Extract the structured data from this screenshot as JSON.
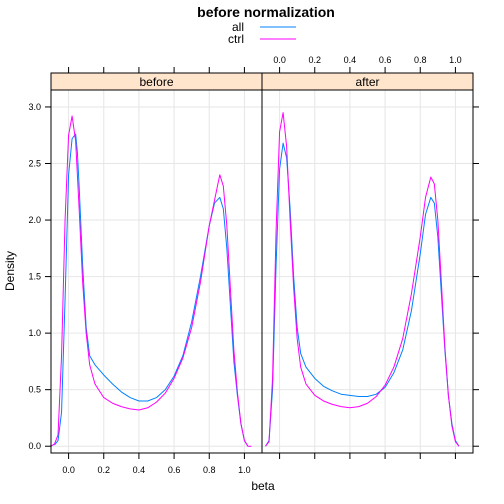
{
  "chart_data": {
    "type": "line",
    "title": "before normalization",
    "xlabel": "beta",
    "ylabel": "Density",
    "xlim": [
      -0.1,
      1.1
    ],
    "ylim": [
      -0.06,
      3.15
    ],
    "xticks": [
      0.0,
      0.2,
      0.4,
      0.6,
      0.8,
      1.0
    ],
    "xtick_labels": [
      "0.0",
      "0.2",
      "0.4",
      "0.6",
      "0.8",
      "1.0"
    ],
    "yticks": [
      0.0,
      0.5,
      1.0,
      1.5,
      2.0,
      2.5,
      3.0
    ],
    "ytick_labels": [
      "0.0",
      "0.5",
      "1.0",
      "1.5",
      "2.0",
      "2.5",
      "3.0"
    ],
    "grid": true,
    "legend": {
      "position": "top",
      "entries": [
        {
          "name": "all",
          "color": "#0080ff"
        },
        {
          "name": "ctrl",
          "color": "#ff00ff"
        }
      ]
    },
    "strip_color": "#ffe5cc",
    "panels": [
      {
        "label": "before",
        "series": [
          {
            "name": "all",
            "color": "#0080ff",
            "x": [
              -0.08,
              -0.06,
              -0.04,
              -0.02,
              0.0,
              0.02,
              0.04,
              0.05,
              0.06,
              0.08,
              0.1,
              0.12,
              0.15,
              0.2,
              0.25,
              0.3,
              0.35,
              0.4,
              0.45,
              0.5,
              0.55,
              0.6,
              0.65,
              0.7,
              0.75,
              0.8,
              0.83,
              0.86,
              0.88,
              0.9,
              0.92,
              0.94,
              0.96,
              0.98,
              1.0,
              1.02
            ],
            "y": [
              0.01,
              0.05,
              0.3,
              1.3,
              2.4,
              2.72,
              2.76,
              2.6,
              2.3,
              1.6,
              1.05,
              0.8,
              0.72,
              0.63,
              0.55,
              0.48,
              0.43,
              0.4,
              0.4,
              0.43,
              0.5,
              0.62,
              0.8,
              1.1,
              1.5,
              1.95,
              2.15,
              2.2,
              2.1,
              1.75,
              1.25,
              0.75,
              0.45,
              0.2,
              0.05,
              0.0
            ]
          },
          {
            "name": "ctrl",
            "color": "#ff00ff",
            "x": [
              -0.1,
              -0.08,
              -0.06,
              -0.04,
              -0.02,
              0.0,
              0.02,
              0.04,
              0.06,
              0.08,
              0.1,
              0.12,
              0.15,
              0.2,
              0.25,
              0.3,
              0.35,
              0.4,
              0.45,
              0.5,
              0.55,
              0.6,
              0.65,
              0.7,
              0.75,
              0.8,
              0.84,
              0.86,
              0.88,
              0.9,
              0.92,
              0.94,
              0.96,
              0.98,
              1.0,
              1.02,
              1.04
            ],
            "y": [
              0.0,
              0.02,
              0.1,
              0.8,
              2.0,
              2.75,
              2.92,
              2.7,
              2.1,
              1.45,
              1.0,
              0.72,
              0.55,
              0.43,
              0.38,
              0.35,
              0.33,
              0.32,
              0.34,
              0.39,
              0.47,
              0.6,
              0.78,
              1.05,
              1.45,
              1.95,
              2.25,
              2.4,
              2.3,
              1.95,
              1.4,
              0.85,
              0.48,
              0.2,
              0.05,
              0.0,
              0.0
            ]
          }
        ]
      },
      {
        "label": "after",
        "series": [
          {
            "name": "all",
            "color": "#0080ff",
            "x": [
              -0.08,
              -0.06,
              -0.04,
              -0.02,
              0.0,
              0.02,
              0.04,
              0.06,
              0.08,
              0.1,
              0.12,
              0.15,
              0.2,
              0.25,
              0.3,
              0.35,
              0.4,
              0.45,
              0.5,
              0.55,
              0.6,
              0.65,
              0.7,
              0.75,
              0.8,
              0.83,
              0.86,
              0.88,
              0.9,
              0.92,
              0.94,
              0.96,
              0.98,
              1.0,
              1.02
            ],
            "y": [
              0.0,
              0.05,
              0.5,
              1.6,
              2.45,
              2.68,
              2.55,
              2.1,
              1.5,
              1.05,
              0.82,
              0.7,
              0.6,
              0.53,
              0.49,
              0.46,
              0.45,
              0.44,
              0.44,
              0.46,
              0.52,
              0.65,
              0.85,
              1.2,
              1.7,
              2.05,
              2.2,
              2.15,
              1.85,
              1.35,
              0.85,
              0.45,
              0.2,
              0.05,
              0.0
            ]
          },
          {
            "name": "ctrl",
            "color": "#ff00ff",
            "x": [
              -0.08,
              -0.06,
              -0.04,
              -0.02,
              0.0,
              0.02,
              0.04,
              0.06,
              0.08,
              0.1,
              0.12,
              0.15,
              0.2,
              0.25,
              0.3,
              0.35,
              0.4,
              0.45,
              0.5,
              0.55,
              0.6,
              0.65,
              0.7,
              0.75,
              0.8,
              0.83,
              0.86,
              0.88,
              0.9,
              0.92,
              0.94,
              0.96,
              0.98,
              1.0,
              1.02
            ],
            "y": [
              0.0,
              0.04,
              0.6,
              1.9,
              2.78,
              2.95,
              2.65,
              2.0,
              1.4,
              0.95,
              0.7,
              0.55,
              0.45,
              0.4,
              0.37,
              0.35,
              0.34,
              0.35,
              0.38,
              0.44,
              0.54,
              0.7,
              0.95,
              1.35,
              1.85,
              2.2,
              2.38,
              2.32,
              2.0,
              1.45,
              0.88,
              0.45,
              0.18,
              0.04,
              0.0
            ]
          }
        ]
      }
    ]
  }
}
